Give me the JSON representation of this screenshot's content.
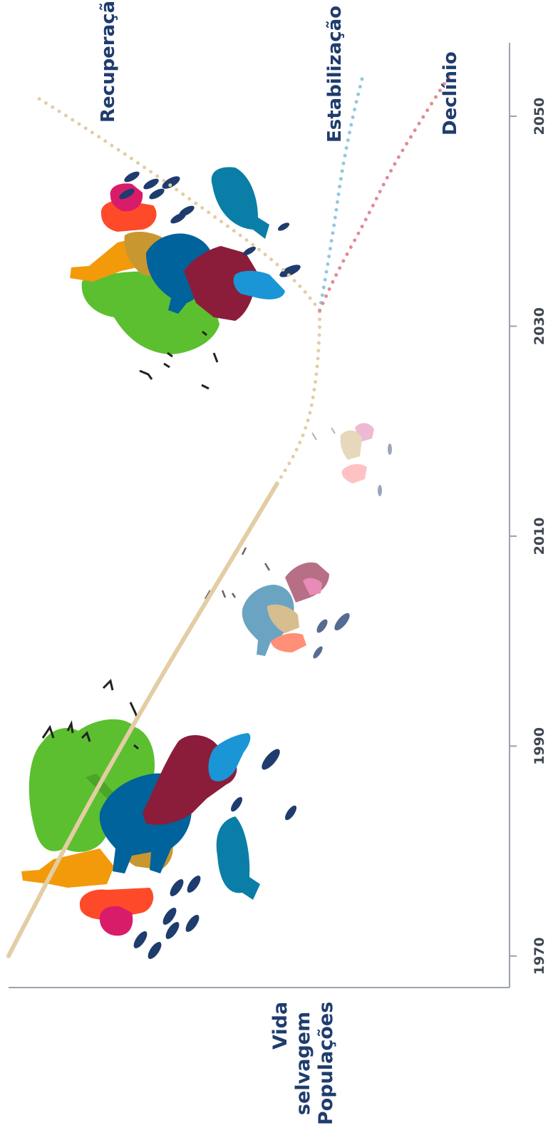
{
  "chart_data": {
    "type": "line",
    "orientation": "rotated-90-clockwise",
    "ylabel_lines": [
      "Vida",
      "selvagem",
      "Populações"
    ],
    "x_ticks": [
      "1970",
      "1990",
      "2010",
      "2030",
      "2050"
    ],
    "x_tick_values": [
      1970,
      1990,
      2010,
      2030,
      2050
    ],
    "xlim": [
      1967,
      2057
    ],
    "ylim": [
      0,
      100
    ],
    "series": [
      {
        "key": "history",
        "style": "solid",
        "color": "#e3cda4",
        "x": [
          1970,
          1975,
          1980,
          1985,
          1990,
          1995,
          2000,
          2005,
          2010,
          2015
        ],
        "y": [
          100,
          94.6,
          89.1,
          83.4,
          77.5,
          71.5,
          65.3,
          59.0,
          52.7,
          46.4
        ]
      },
      {
        "key": "transition",
        "style": "dotted",
        "color": "#e3cda4",
        "x": [
          2015,
          2018,
          2021,
          2024,
          2027,
          2030,
          2031.5
        ],
        "y": [
          46.4,
          42.6,
          40.1,
          38.9,
          38.2,
          37.9,
          37.9
        ]
      },
      {
        "name": "Recuperação",
        "style": "dotted",
        "color": "#e3cda4",
        "x": [
          2031.5,
          2034,
          2037,
          2040,
          2043,
          2046,
          2049,
          2052
        ],
        "y": [
          37.9,
          42.0,
          49.0,
          57.6,
          66.4,
          75.5,
          85.0,
          95.0
        ]
      },
      {
        "name": "Estabilização",
        "style": "dotted",
        "color": "#8ec9e0",
        "x": [
          2031.5,
          2035,
          2040,
          2045,
          2050,
          2054
        ],
        "y": [
          37.9,
          36.6,
          34.9,
          33.4,
          31.3,
          29.2
        ]
      },
      {
        "name": "Declínio",
        "style": "dotted",
        "color": "#e38a95",
        "x": [
          2031.5,
          2035,
          2040,
          2045,
          2050,
          2054
        ],
        "y": [
          37.9,
          34.6,
          28.8,
          23.6,
          17.2,
          11.8
        ]
      }
    ],
    "label_color": "#1f3c6e",
    "animal_palette": [
      "#f29a0a",
      "#5cbf2f",
      "#8b1d3a",
      "#00639b",
      "#1a95d6",
      "#c99730",
      "#ff4a2a",
      "#d91c6a",
      "#0a7ea6",
      "#1f3c6e"
    ]
  }
}
